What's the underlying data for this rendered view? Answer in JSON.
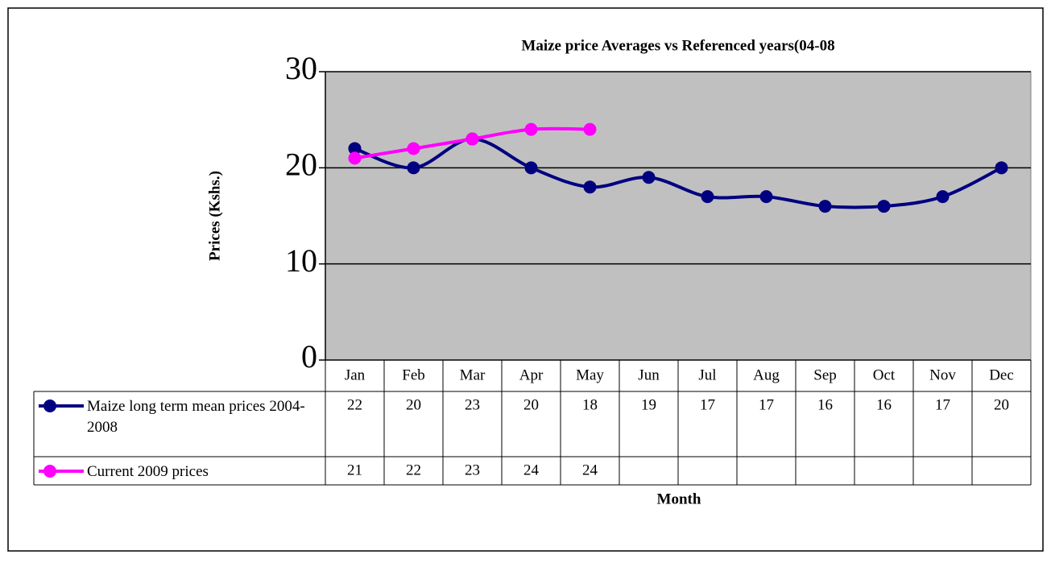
{
  "chart_data": {
    "type": "line",
    "title": "Maize price Averages vs Referenced years(04-08",
    "y_label": "Prices (Kshs.)",
    "x_label": "Month",
    "categories": [
      "Jan",
      "Feb",
      "Mar",
      "Apr",
      "May",
      "Jun",
      "Jul",
      "Aug",
      "Sep",
      "Oct",
      "Nov",
      "Dec"
    ],
    "series": [
      {
        "name": "Maize long term mean prices 2004-2008",
        "color": "#000080",
        "values": [
          22,
          20,
          23,
          20,
          18,
          19,
          17,
          17,
          16,
          16,
          17,
          20
        ]
      },
      {
        "name": "Current 2009 prices",
        "color": "#ff00ff",
        "values": [
          21,
          22,
          23,
          24,
          24,
          null,
          null,
          null,
          null,
          null,
          null,
          null
        ]
      }
    ],
    "ylim": [
      0,
      30
    ],
    "yticks": [
      0,
      10,
      20,
      30
    ],
    "grid": true,
    "plot_background": "#c0c0c0",
    "smooth": true,
    "data_table": true
  }
}
